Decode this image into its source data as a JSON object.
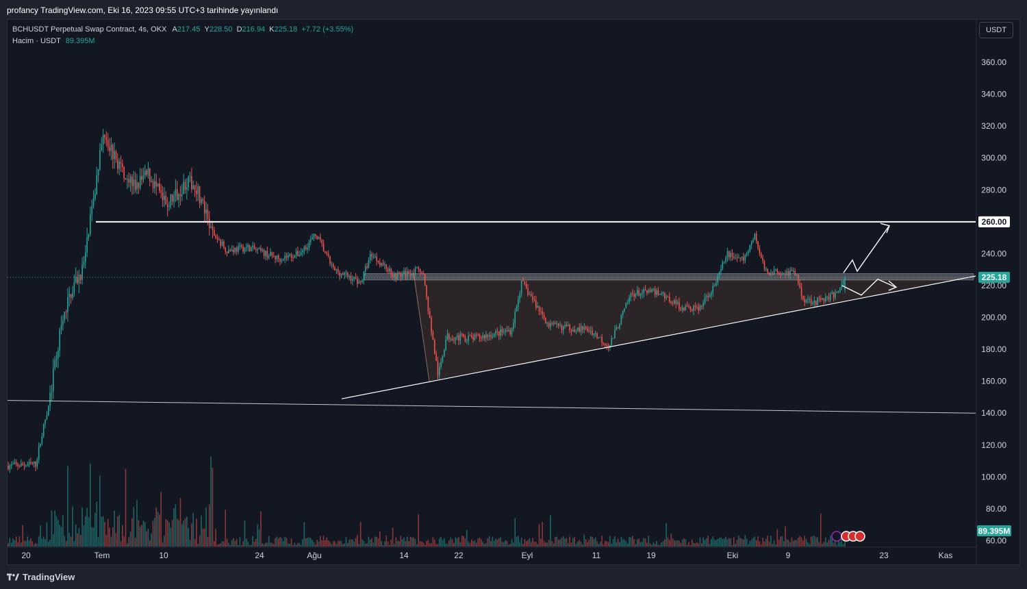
{
  "header": {
    "title": "profancy TradingView.com, Eki 16, 2023 09:55 UTC+3 tarihinde yayınlandı"
  },
  "legend": {
    "symbol": "BCHUSDT Perpetual Swap Contract, 4s, OKX",
    "open_label": "A",
    "open": "217.45",
    "high_label": "Y",
    "high": "228.50",
    "low_label": "D",
    "low": "216.94",
    "close_label": "K",
    "close": "225.18",
    "change": "+7.72 (+3.55%)",
    "volume_label": "Hacim · USDT",
    "volume_value": "89.395M"
  },
  "currency_button": "USDT",
  "footer": {
    "brand": "TradingView"
  },
  "colors": {
    "background": "#131722",
    "up": "#26a69a",
    "down": "#ef5350",
    "text": "#d1d4dc",
    "drawing": "#ffffff"
  },
  "chart_data": {
    "type": "candlestick",
    "symbol": "BCHUSDT",
    "interval": "4s",
    "y_axis": {
      "ticks": [
        "360.00",
        "340.00",
        "320.00",
        "300.00",
        "280.00",
        "260.00",
        "240.00",
        "220.00",
        "200.00",
        "180.00",
        "160.00",
        "140.00",
        "120.00",
        "100.00",
        "80.00",
        "60.00"
      ],
      "range": [
        58,
        372
      ]
    },
    "x_axis": {
      "ticks": [
        "20",
        "Tem",
        "10",
        "24",
        "Ağu",
        "14",
        "22",
        "Eyl",
        "11",
        "19",
        "Eki",
        "9",
        "23",
        "Kas"
      ]
    },
    "price_label": "225.18",
    "level_label": "260.00",
    "volume_label": "89.395M",
    "keypoints": [
      {
        "t": 0,
        "p": 107
      },
      {
        "t": 40,
        "p": 108
      },
      {
        "t": 50,
        "p": 128
      },
      {
        "t": 60,
        "p": 148
      },
      {
        "t": 75,
        "p": 188
      },
      {
        "t": 90,
        "p": 215
      },
      {
        "t": 110,
        "p": 232
      },
      {
        "t": 140,
        "p": 318
      },
      {
        "t": 155,
        "p": 300
      },
      {
        "t": 185,
        "p": 282
      },
      {
        "t": 205,
        "p": 290
      },
      {
        "t": 230,
        "p": 270
      },
      {
        "t": 260,
        "p": 285
      },
      {
        "t": 275,
        "p": 282
      },
      {
        "t": 295,
        "p": 255
      },
      {
        "t": 320,
        "p": 242
      },
      {
        "t": 350,
        "p": 244
      },
      {
        "t": 395,
        "p": 237
      },
      {
        "t": 425,
        "p": 240
      },
      {
        "t": 450,
        "p": 252
      },
      {
        "t": 475,
        "p": 230
      },
      {
        "t": 515,
        "p": 222
      },
      {
        "t": 530,
        "p": 240
      },
      {
        "t": 565,
        "p": 226
      },
      {
        "t": 605,
        "p": 230
      },
      {
        "t": 628,
        "p": 163
      },
      {
        "t": 640,
        "p": 188
      },
      {
        "t": 680,
        "p": 187
      },
      {
        "t": 735,
        "p": 192
      },
      {
        "t": 750,
        "p": 222
      },
      {
        "t": 790,
        "p": 195
      },
      {
        "t": 850,
        "p": 192
      },
      {
        "t": 878,
        "p": 182
      },
      {
        "t": 910,
        "p": 215
      },
      {
        "t": 950,
        "p": 216
      },
      {
        "t": 985,
        "p": 206
      },
      {
        "t": 1010,
        "p": 206
      },
      {
        "t": 1035,
        "p": 223
      },
      {
        "t": 1050,
        "p": 240
      },
      {
        "t": 1075,
        "p": 236
      },
      {
        "t": 1090,
        "p": 252
      },
      {
        "t": 1105,
        "p": 229
      },
      {
        "t": 1150,
        "p": 228
      },
      {
        "t": 1160,
        "p": 212
      },
      {
        "t": 1180,
        "p": 210
      },
      {
        "t": 1210,
        "p": 215
      },
      {
        "t": 1222,
        "p": 225.18
      }
    ],
    "volume_range": [
      0,
      80
    ],
    "drawings": {
      "horizontal_level": 260,
      "resistance_zone": [
        223.5,
        227.5
      ],
      "rising_trendline": [
        {
          "x": "Ağu",
          "p": 149
        },
        {
          "x": "end",
          "p": 226
        }
      ],
      "long_trendline": [
        {
          "x": "start",
          "p": 148
        },
        {
          "x": "end",
          "p": 140
        }
      ]
    }
  }
}
